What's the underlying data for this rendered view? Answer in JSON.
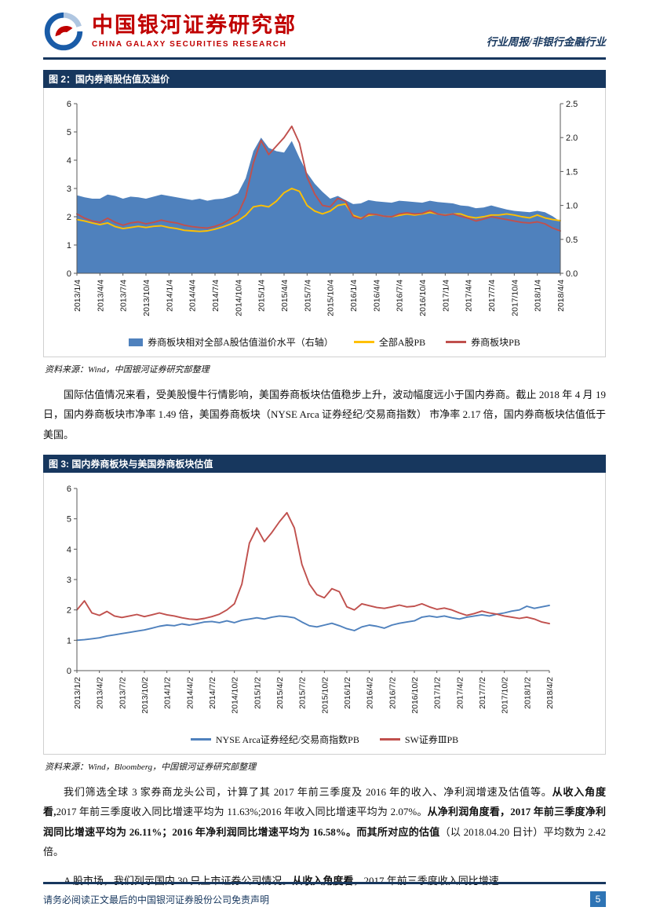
{
  "header": {
    "org_cn": "中国银河证券研究部",
    "org_en": "CHINA GALAXY SECURITIES RESEARCH",
    "doc_type": "行业周报/非银行金融行业"
  },
  "figure2": {
    "caption": "图 2：国内券商股估值及溢价",
    "source": "资料来源：Wind，中国银河证券研究部整理"
  },
  "figure3": {
    "caption": "图 3: 国内券商板块与美国券商板块估值",
    "source": "资料来源：Wind，Bloomberg，中国银河证券研究部整理"
  },
  "paragraphs": {
    "p1": "国际估值情况来看，受美股慢牛行情影响，美国券商板块估值稳步上升，波动幅度远小于国内券商。截止 2018 年 4 月 19 日，国内券商板块市净率 1.49 倍，美国券商板块（NYSE Arca 证券经纪/交易商指数） 市净率 2.17 倍，国内券商板块估值低于美国。",
    "p2": {
      "t1": "我们筛选全球 3 家券商龙头公司，计算了其 2017 年前三季度及 2016 年的收入、净利润增速及估值等。",
      "b1": "从收入角度看,",
      "t2": "2017 年前三季度收入同比增速平均为 11.63%;2016 年收入同比增速平均为 2.07%。",
      "b2": "从净利润角度看，2017 年前三季度净利润同比增速平均为 26.11%；2016 年净利润同比增速平均为 16.58%。",
      "b3": "而其所对应的估值",
      "t3": "（以 2018.04.20 日计）平均数为 2.42 倍。"
    },
    "p3": {
      "t1": "A 股市场，我们列示国内 30 只上市证券公司情况。",
      "b1": "从收入角度看",
      "t2": "，2017 年前三季度收入同比增速"
    }
  },
  "footer": {
    "disclaimer": "请务必阅读正文最后的中国银河证券股份公司免责声明",
    "page": "5"
  },
  "chart_data": [
    {
      "type": "area",
      "title": "国内券商股估值及溢价",
      "xlabel": "",
      "ylabel": "",
      "left_ylim": [
        0,
        6
      ],
      "right_ylim": [
        0,
        2.5
      ],
      "left_ticks": [
        "0",
        "1",
        "2",
        "3",
        "4",
        "5",
        "6"
      ],
      "right_ticks": [
        "0.0",
        "0.5",
        "1.0",
        "1.5",
        "2.0",
        "2.5"
      ],
      "label_step": 3,
      "x_labels": [
        "2013/1/4",
        "2013/4/4",
        "2013/7/4",
        "2013/10/4",
        "2014/1/4",
        "2014/4/4",
        "2014/7/4",
        "2014/10/4",
        "2015/1/4",
        "2015/4/4",
        "2015/7/4",
        "2015/10/4",
        "2016/1/4",
        "2016/4/4",
        "2016/7/4",
        "2016/10/4",
        "2017/1/4",
        "2017/4/4",
        "2017/7/4",
        "2017/10/4",
        "2018/1/4",
        "2018/4/4"
      ],
      "grid": false,
      "legend_position": "bottom",
      "series": [
        {
          "name": "券商板块相对全部A股估值溢价水平（右轴）",
          "type": "area",
          "axis": "right",
          "color": "#4F81BD",
          "values": [
            1.15,
            1.12,
            1.1,
            1.1,
            1.16,
            1.14,
            1.1,
            1.13,
            1.12,
            1.1,
            1.13,
            1.16,
            1.14,
            1.12,
            1.1,
            1.08,
            1.1,
            1.07,
            1.09,
            1.1,
            1.13,
            1.18,
            1.4,
            1.8,
            2.0,
            1.85,
            1.8,
            1.78,
            1.95,
            1.7,
            1.48,
            1.32,
            1.2,
            1.1,
            1.14,
            1.08,
            1.02,
            1.03,
            1.08,
            1.06,
            1.05,
            1.04,
            1.07,
            1.06,
            1.05,
            1.04,
            1.07,
            1.05,
            1.04,
            1.03,
            1.0,
            0.99,
            0.96,
            0.97,
            1.0,
            0.97,
            0.94,
            0.92,
            0.91,
            0.9,
            0.92,
            0.9,
            0.84,
            0.76
          ]
        },
        {
          "name": "全部A股PB",
          "type": "line",
          "axis": "left",
          "color": "#FFC000",
          "values": [
            1.9,
            1.85,
            1.78,
            1.72,
            1.78,
            1.65,
            1.58,
            1.62,
            1.66,
            1.62,
            1.66,
            1.68,
            1.62,
            1.58,
            1.52,
            1.5,
            1.48,
            1.5,
            1.56,
            1.64,
            1.74,
            1.86,
            2.05,
            2.35,
            2.4,
            2.35,
            2.55,
            2.85,
            3.0,
            2.9,
            2.4,
            2.2,
            2.1,
            2.2,
            2.4,
            2.45,
            2.05,
            1.95,
            2.05,
            2.08,
            2.02,
            2.0,
            2.05,
            2.1,
            2.06,
            2.1,
            2.15,
            2.1,
            2.06,
            2.1,
            2.1,
            2.0,
            1.96,
            2.0,
            2.06,
            2.06,
            2.1,
            2.06,
            2.0,
            1.96,
            2.06,
            1.96,
            1.9,
            1.86
          ]
        },
        {
          "name": "券商板块PB",
          "type": "line",
          "axis": "left",
          "color": "#C0504D",
          "values": [
            2.1,
            1.95,
            1.85,
            1.8,
            1.95,
            1.8,
            1.7,
            1.78,
            1.82,
            1.75,
            1.8,
            1.88,
            1.82,
            1.78,
            1.7,
            1.65,
            1.62,
            1.6,
            1.66,
            1.76,
            1.92,
            2.1,
            2.7,
            3.9,
            4.7,
            4.2,
            4.5,
            4.8,
            5.2,
            4.6,
            3.4,
            2.8,
            2.4,
            2.35,
            2.65,
            2.55,
            2.0,
            1.92,
            2.1,
            2.08,
            2.02,
            2.0,
            2.1,
            2.14,
            2.1,
            2.12,
            2.22,
            2.1,
            2.05,
            2.1,
            2.02,
            1.95,
            1.85,
            1.92,
            2.0,
            1.95,
            1.9,
            1.85,
            1.8,
            1.78,
            1.82,
            1.75,
            1.6,
            1.5
          ]
        }
      ]
    },
    {
      "type": "line",
      "title": "国内券商板块与美国券商板块估值",
      "xlabel": "",
      "ylabel": "",
      "left_ylim": [
        0,
        6
      ],
      "left_ticks": [
        "0",
        "1",
        "2",
        "3",
        "4",
        "5",
        "6"
      ],
      "label_step": 3,
      "x_labels": [
        "2013/1/2",
        "2013/4/2",
        "2013/7/2",
        "2013/10/2",
        "2014/1/2",
        "2014/4/2",
        "2014/7/2",
        "2014/10/2",
        "2015/1/2",
        "2015/4/2",
        "2015/7/2",
        "2015/10/2",
        "2016/1/2",
        "2016/4/2",
        "2016/7/2",
        "2016/10/2",
        "2017/1/2",
        "2017/4/2",
        "2017/7/2",
        "2017/10/2",
        "2018/1/2",
        "2018/4/2"
      ],
      "grid": false,
      "legend_position": "bottom",
      "series": [
        {
          "name": "NYSE Arca证券经纪/交易商指数PB",
          "type": "line",
          "axis": "left",
          "color": "#4F81BD",
          "values": [
            1.0,
            1.02,
            1.05,
            1.08,
            1.14,
            1.18,
            1.22,
            1.26,
            1.3,
            1.34,
            1.4,
            1.46,
            1.5,
            1.48,
            1.54,
            1.5,
            1.55,
            1.6,
            1.62,
            1.58,
            1.64,
            1.58,
            1.66,
            1.7,
            1.74,
            1.7,
            1.76,
            1.8,
            1.78,
            1.74,
            1.6,
            1.48,
            1.44,
            1.5,
            1.56,
            1.48,
            1.38,
            1.32,
            1.44,
            1.5,
            1.46,
            1.4,
            1.5,
            1.56,
            1.6,
            1.64,
            1.76,
            1.8,
            1.76,
            1.8,
            1.74,
            1.7,
            1.76,
            1.8,
            1.84,
            1.8,
            1.86,
            1.9,
            1.96,
            2.0,
            2.12,
            2.05,
            2.1,
            2.15
          ]
        },
        {
          "name": "SW证券ⅢPB",
          "type": "line",
          "axis": "left",
          "color": "#C0504D",
          "values": [
            2.0,
            2.3,
            1.9,
            1.82,
            1.95,
            1.8,
            1.75,
            1.8,
            1.85,
            1.78,
            1.84,
            1.9,
            1.84,
            1.8,
            1.74,
            1.7,
            1.68,
            1.72,
            1.78,
            1.86,
            2.0,
            2.2,
            2.85,
            4.2,
            4.7,
            4.25,
            4.55,
            4.9,
            5.2,
            4.7,
            3.5,
            2.85,
            2.5,
            2.4,
            2.7,
            2.6,
            2.1,
            2.0,
            2.2,
            2.14,
            2.08,
            2.05,
            2.1,
            2.16,
            2.1,
            2.12,
            2.2,
            2.1,
            2.02,
            2.06,
            2.0,
            1.9,
            1.82,
            1.88,
            1.96,
            1.9,
            1.86,
            1.8,
            1.76,
            1.72,
            1.76,
            1.7,
            1.6,
            1.55
          ]
        }
      ]
    }
  ]
}
